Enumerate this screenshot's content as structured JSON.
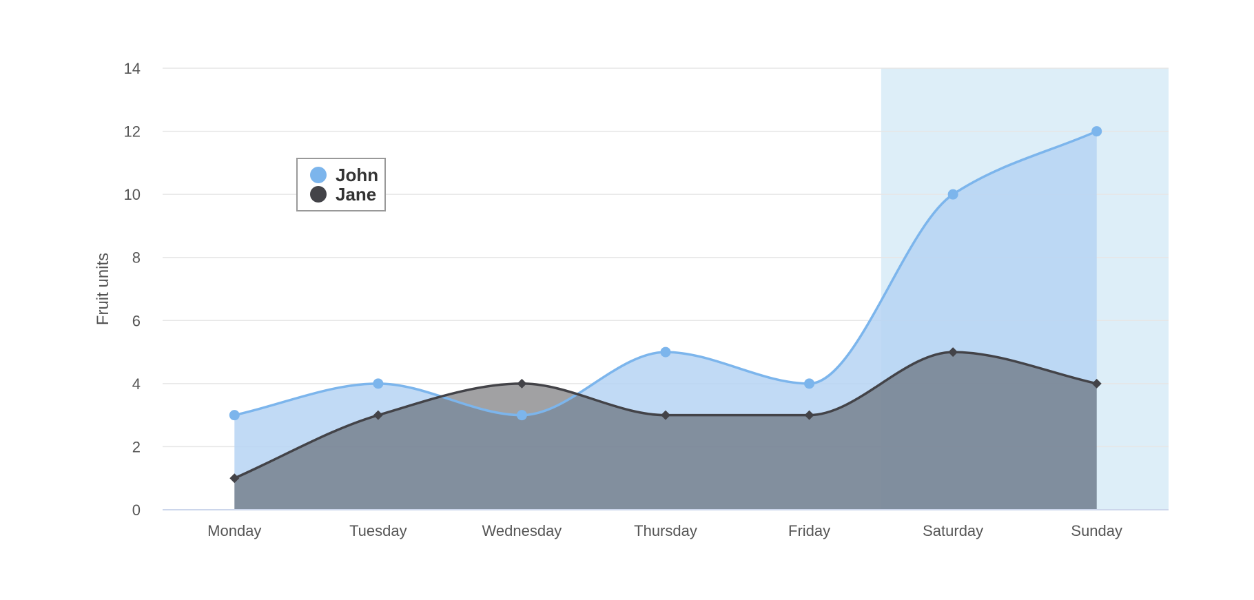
{
  "chart_data": {
    "type": "area",
    "title": "",
    "subtitle": "",
    "categories": [
      "Monday",
      "Tuesday",
      "Wednesday",
      "Thursday",
      "Friday",
      "Saturday",
      "Sunday"
    ],
    "ylabel": "Fruit units",
    "xlabel": "",
    "ylim": [
      0,
      14
    ],
    "yticks": [
      0,
      2,
      4,
      6,
      8,
      10,
      12,
      14
    ],
    "grid": true,
    "legend": {
      "placement": "top-left, inside plot"
    },
    "plot_band": {
      "from_category": "Saturday",
      "to_category": "Sunday",
      "color": "#ddeef8"
    },
    "series": [
      {
        "name": "John",
        "values": [
          3,
          4,
          3,
          5,
          4,
          10,
          12
        ],
        "color": "#7cb5ec",
        "fill_color": "#b6d4f3",
        "marker": "circle"
      },
      {
        "name": "Jane",
        "values": [
          1,
          3,
          4,
          3,
          3,
          5,
          4
        ],
        "color": "#434348",
        "fill_color": "#434348",
        "fill_opacity": 0.5,
        "marker": "diamond"
      }
    ]
  }
}
